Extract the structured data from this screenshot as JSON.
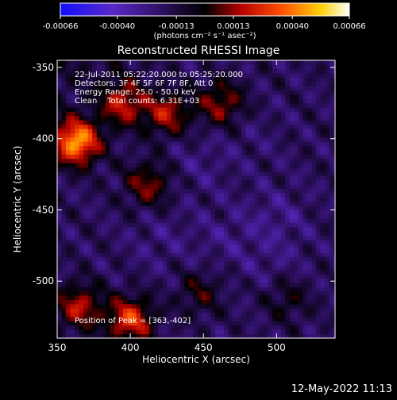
{
  "title": "Reconstructed RHESSI Image",
  "colorbar": {
    "ticks": [
      "-0.00066",
      "-0.00040",
      "-0.00013",
      "0.00013",
      "0.00040",
      "0.00066"
    ],
    "range": [
      -0.00066,
      0.00066
    ],
    "units_label": "(photons cm⁻² s⁻¹ asec⁻²)"
  },
  "info": {
    "time": "22-Jul-2011 05:22:20.000 to 05:25:20.000",
    "detectors": "Detectors: 3F 4F 5F 6F 7F 8F, Att 0",
    "energy": "Energy Range: 25.0 - 50.0 keV",
    "clean": "Clean    Total counts: 6.31E+03",
    "peak": "Position of Peak = [363,-402]"
  },
  "footer": {
    "date": "12-May-2022 11:13"
  },
  "chart_data": {
    "type": "heatmap",
    "title": "Reconstructed RHESSI Image",
    "xlabel": "Heliocentric X (arcsec)",
    "ylabel": "Heliocentric Y (arcsec)",
    "xlim": [
      350,
      540
    ],
    "ylim": [
      -540,
      -345
    ],
    "x_ticks": [
      350,
      400,
      450,
      500
    ],
    "y_ticks": [
      -350,
      -400,
      -450,
      -500
    ],
    "x_tick_labels": [
      "350",
      "400",
      "450",
      "500"
    ],
    "y_tick_labels": [
      "-350",
      "-400",
      "-450",
      "-500"
    ],
    "colormap": "blue-purple-black-red-orange-yellow-white",
    "peak_position": [
      363,
      -402
    ],
    "hot_sources": [
      {
        "x": 363,
        "y": -402,
        "value": 0.00066
      },
      {
        "x": 395,
        "y": -375,
        "value": 0.00038
      },
      {
        "x": 425,
        "y": -382,
        "value": 0.00034
      },
      {
        "x": 462,
        "y": -375,
        "value": 0.0003
      },
      {
        "x": 412,
        "y": -432,
        "value": 0.00028
      },
      {
        "x": 365,
        "y": -518,
        "value": 0.00035
      },
      {
        "x": 400,
        "y": -527,
        "value": 0.00045
      },
      {
        "x": 447,
        "y": -508,
        "value": 0.00018
      },
      {
        "x": 507,
        "y": -512,
        "value": 0.00016
      }
    ],
    "cold_sources": [
      {
        "x": 447,
        "y": -418,
        "value": -0.0003
      },
      {
        "x": 482,
        "y": -400,
        "value": -0.00025
      },
      {
        "x": 420,
        "y": -470,
        "value": -0.0003
      },
      {
        "x": 465,
        "y": -470,
        "value": -0.00032
      },
      {
        "x": 500,
        "y": -455,
        "value": -0.00035
      },
      {
        "x": 500,
        "y": -490,
        "value": -0.0003
      },
      {
        "x": 430,
        "y": -500,
        "value": -0.0002
      }
    ]
  }
}
